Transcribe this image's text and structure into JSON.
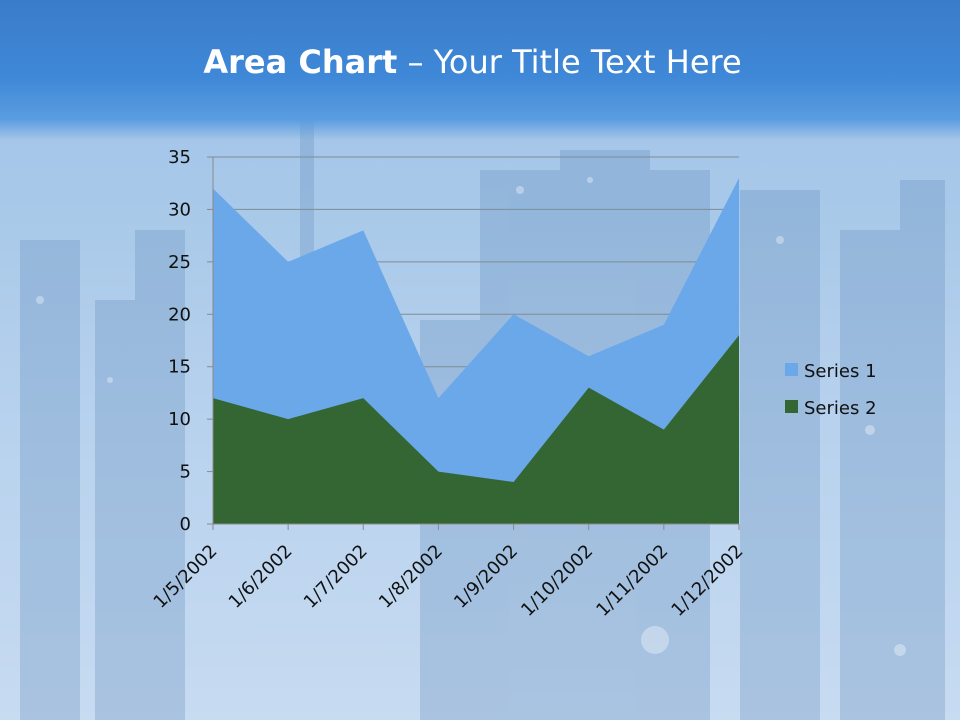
{
  "slide": {
    "title_bold": "Area Chart",
    "title_rest": " – Your Title Text Here"
  },
  "colors": {
    "series1": "#6aa8ea",
    "series2": "#336633",
    "gridline": "#7f8b97",
    "axis": "#8a8a8a"
  },
  "chart_data": {
    "type": "area",
    "title": "",
    "xlabel": "",
    "ylabel": "",
    "ylim": [
      0,
      35
    ],
    "yticks": [
      0,
      5,
      10,
      15,
      20,
      25,
      30,
      35
    ],
    "grid": true,
    "legend_position": "right",
    "categories": [
      "1/5/2002",
      "1/6/2002",
      "1/7/2002",
      "1/8/2002",
      "1/9/2002",
      "1/10/2002",
      "1/11/2002",
      "1/12/2002"
    ],
    "series": [
      {
        "name": "Series 1",
        "values": [
          32,
          25,
          28,
          12,
          20,
          16,
          19,
          33
        ]
      },
      {
        "name": "Series 2",
        "values": [
          12,
          10,
          12,
          5,
          4,
          13,
          9,
          18
        ]
      }
    ]
  }
}
